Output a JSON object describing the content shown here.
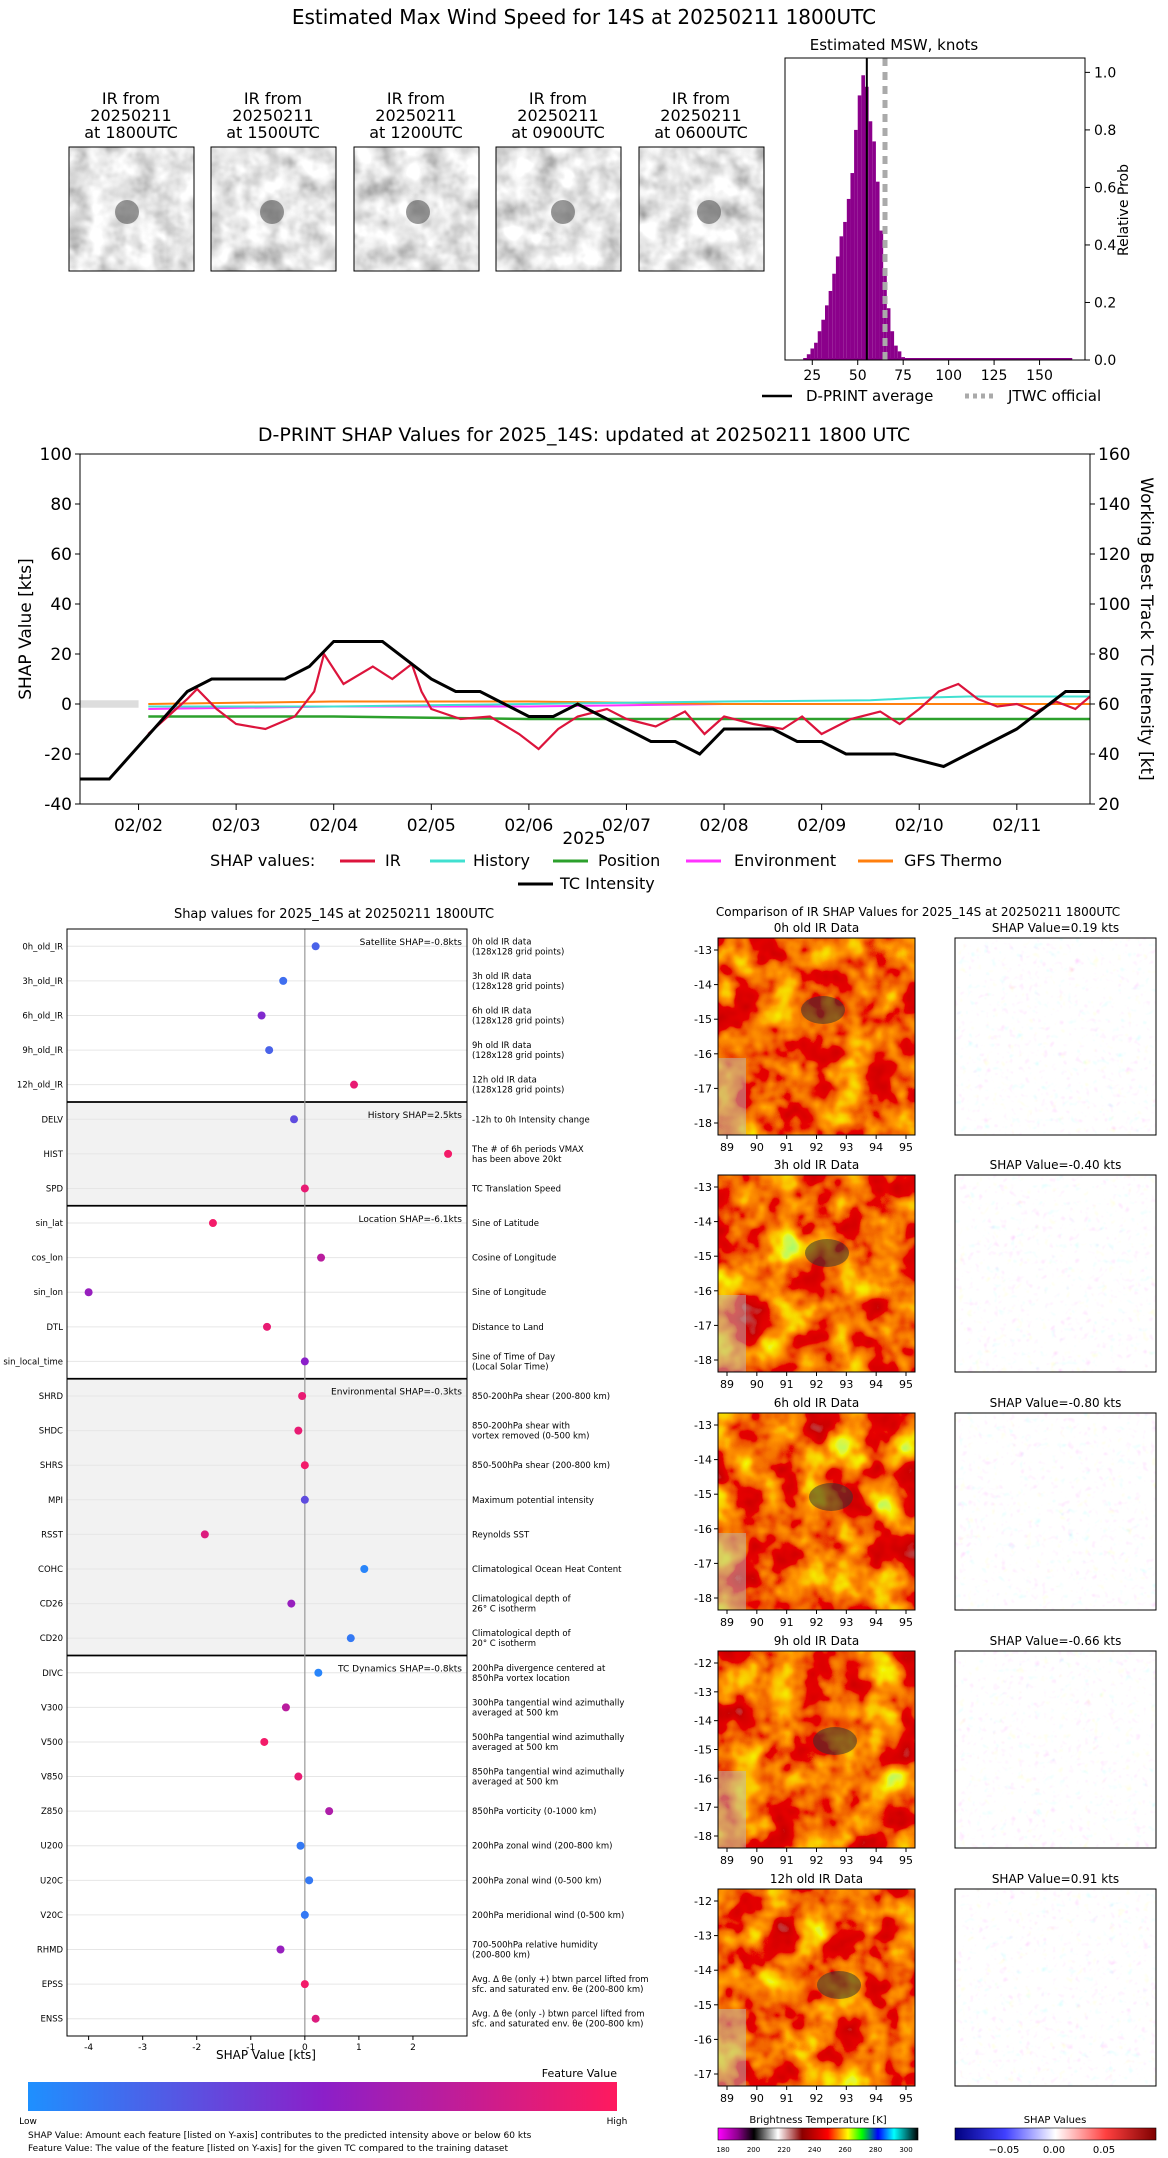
{
  "page_title": "Estimated Max Wind Speed for 14S at 20250211 1800UTC",
  "ir_thumbnails": [
    {
      "line1": "IR from",
      "line2": "20250211",
      "line3": "at 1800UTC"
    },
    {
      "line1": "IR from",
      "line2": "20250211",
      "line3": "at 1500UTC"
    },
    {
      "line1": "IR from",
      "line2": "20250211",
      "line3": "at 1200UTC"
    },
    {
      "line1": "IR from",
      "line2": "20250211",
      "line3": "at 0900UTC"
    },
    {
      "line1": "IR from",
      "line2": "20250211",
      "line3": "at 0600UTC"
    }
  ],
  "legend_top": {
    "dprint": "D-PRINT average",
    "jtwc": "JTWC official"
  },
  "legend_shap": {
    "prefix": "SHAP values:",
    "ir": "IR",
    "history": "History",
    "position": "Position",
    "environment": "Environment",
    "gfs": "GFS Thermo",
    "tc": "TC Intensity"
  },
  "feature_value": {
    "title": "Feature Value",
    "low": "Low",
    "high": "High"
  },
  "footnotes": {
    "shap_value": "SHAP Value: Amount each feature [listed on Y-axis] contributes to the predicted intensity above or below 60 kts",
    "feature_value": "Feature Value: The value of the feature [listed on Y-axis] for the given TC compared to the training dataset"
  },
  "colorbars": {
    "bt_title": "Brightness Temperature [K]",
    "bt_ticks": [
      "180",
      "200",
      "220",
      "240",
      "260",
      "280",
      "300"
    ],
    "shap_title": "SHAP Values",
    "shap_ticks": [
      "−0.05",
      "0.00",
      "0.05"
    ]
  },
  "colors": {
    "ir": "#dc143c",
    "history": "#40e0d0",
    "position": "#2ca02c",
    "environment": "#ff33ff",
    "gfs": "#ff7f0e",
    "tc": "#000000",
    "histogram": "#8b008b",
    "low": "#1e90ff",
    "high": "#ff1a5e"
  },
  "chart_data": [
    {
      "type": "bar",
      "title": "Estimated MSW, knots",
      "ylabel": "Relative Prob",
      "xlim": [
        10,
        175
      ],
      "ylim": [
        0,
        1.05
      ],
      "x_ticks": [
        25,
        50,
        75,
        100,
        125,
        150
      ],
      "y_ticks": [
        "0.0",
        "0.2",
        "0.4",
        "0.6",
        "0.8",
        "1.0"
      ],
      "bin_width": 2,
      "bins": [
        [
          22,
          0.02
        ],
        [
          24,
          0.04
        ],
        [
          26,
          0.06
        ],
        [
          28,
          0.1
        ],
        [
          30,
          0.14
        ],
        [
          32,
          0.19
        ],
        [
          34,
          0.24
        ],
        [
          36,
          0.3
        ],
        [
          38,
          0.36
        ],
        [
          40,
          0.43
        ],
        [
          42,
          0.48
        ],
        [
          44,
          0.56
        ],
        [
          46,
          0.65
        ],
        [
          48,
          0.8
        ],
        [
          50,
          0.92
        ],
        [
          52,
          0.99
        ],
        [
          54,
          0.95
        ],
        [
          56,
          0.83
        ],
        [
          58,
          0.76
        ],
        [
          60,
          0.62
        ],
        [
          62,
          0.45
        ],
        [
          64,
          0.3
        ],
        [
          66,
          0.18
        ],
        [
          68,
          0.1
        ],
        [
          70,
          0.05
        ],
        [
          72,
          0.03
        ],
        [
          74,
          0.01
        ]
      ],
      "baseline_range": [
        20,
        168
      ],
      "dprint_average": 55,
      "jtwc_official": 65
    },
    {
      "type": "line",
      "title": "D-PRINT SHAP Values for 2025_14S: updated at 20250211 1800 UTC",
      "ylabel": "SHAP Value [kts]",
      "y2label": "Working Best Track TC Intensity [kt]",
      "xlabel": "2025",
      "x_ticks": [
        "02/02",
        "02/03",
        "02/04",
        "02/05",
        "02/06",
        "02/07",
        "02/08",
        "02/09",
        "02/10",
        "02/11"
      ],
      "xlim": [
        1.4,
        11.75
      ],
      "ylim": [
        -40,
        100
      ],
      "y_ticks": [
        "-40",
        "-20",
        "0",
        "20",
        "40",
        "60",
        "80",
        "100"
      ],
      "y2lim": [
        20,
        160
      ],
      "y2_ticks": [
        "20",
        "40",
        "60",
        "80",
        "100",
        "120",
        "140",
        "160"
      ],
      "tc_intensity": [
        [
          1.4,
          30
        ],
        [
          1.7,
          30
        ],
        [
          2.5,
          65
        ],
        [
          2.75,
          70
        ],
        [
          3.5,
          70
        ],
        [
          3.75,
          75
        ],
        [
          4.0,
          85
        ],
        [
          4.5,
          85
        ],
        [
          5.0,
          70
        ],
        [
          5.25,
          65
        ],
        [
          5.5,
          65
        ],
        [
          6.0,
          55
        ],
        [
          6.25,
          55
        ],
        [
          6.5,
          60
        ],
        [
          7.0,
          50
        ],
        [
          7.25,
          45
        ],
        [
          7.5,
          45
        ],
        [
          7.75,
          40
        ],
        [
          8.0,
          50
        ],
        [
          8.5,
          50
        ],
        [
          8.75,
          45
        ],
        [
          9.0,
          45
        ],
        [
          9.25,
          40
        ],
        [
          9.75,
          40
        ],
        [
          10.25,
          35
        ],
        [
          10.5,
          40
        ],
        [
          11.0,
          50
        ],
        [
          11.5,
          65
        ],
        [
          11.75,
          65
        ]
      ],
      "ir_shap": [
        [
          2.1,
          -12
        ],
        [
          2.3,
          -5
        ],
        [
          2.5,
          2
        ],
        [
          2.6,
          6
        ],
        [
          2.8,
          -2
        ],
        [
          3.0,
          -8
        ],
        [
          3.3,
          -10
        ],
        [
          3.6,
          -5
        ],
        [
          3.8,
          5
        ],
        [
          3.9,
          20
        ],
        [
          4.1,
          8
        ],
        [
          4.4,
          15
        ],
        [
          4.6,
          10
        ],
        [
          4.8,
          16
        ],
        [
          4.9,
          5
        ],
        [
          5.0,
          -2
        ],
        [
          5.3,
          -6
        ],
        [
          5.6,
          -5
        ],
        [
          5.9,
          -12
        ],
        [
          6.1,
          -18
        ],
        [
          6.3,
          -10
        ],
        [
          6.5,
          -5
        ],
        [
          6.8,
          -2
        ],
        [
          7.0,
          -6
        ],
        [
          7.3,
          -9
        ],
        [
          7.6,
          -3
        ],
        [
          7.8,
          -12
        ],
        [
          8.0,
          -5
        ],
        [
          8.3,
          -8
        ],
        [
          8.6,
          -10
        ],
        [
          8.8,
          -5
        ],
        [
          9.0,
          -12
        ],
        [
          9.3,
          -6
        ],
        [
          9.6,
          -3
        ],
        [
          9.8,
          -8
        ],
        [
          10.0,
          -2
        ],
        [
          10.2,
          5
        ],
        [
          10.4,
          8
        ],
        [
          10.6,
          2
        ],
        [
          10.8,
          -1
        ],
        [
          11.0,
          0
        ],
        [
          11.2,
          -3
        ],
        [
          11.4,
          1
        ],
        [
          11.6,
          -2
        ],
        [
          11.75,
          3
        ]
      ],
      "history_shap": [
        [
          2.1,
          -1
        ],
        [
          4.0,
          -1
        ],
        [
          6.0,
          0
        ],
        [
          8.0,
          1
        ],
        [
          9.5,
          1.5
        ],
        [
          10.0,
          2.5
        ],
        [
          10.5,
          3
        ],
        [
          11.75,
          3
        ]
      ],
      "position_shap": [
        [
          2.1,
          -5
        ],
        [
          4.0,
          -5
        ],
        [
          6.0,
          -6
        ],
        [
          8.0,
          -6
        ],
        [
          10.0,
          -6
        ],
        [
          11.75,
          -6
        ]
      ],
      "environment_shap": [
        [
          2.1,
          -2
        ],
        [
          4.0,
          -1
        ],
        [
          6.0,
          -1
        ],
        [
          8.0,
          0
        ],
        [
          10.0,
          0
        ],
        [
          11.75,
          0
        ]
      ],
      "gfs_shap": [
        [
          2.1,
          0
        ],
        [
          4.0,
          1
        ],
        [
          6.0,
          1
        ],
        [
          8.0,
          0
        ],
        [
          10.0,
          0
        ],
        [
          11.75,
          0
        ]
      ]
    },
    {
      "type": "scatter",
      "title": "Shap values for 2025_14S at 20250211 1800UTC",
      "xlabel": "SHAP Value [kts]",
      "xlim": [
        -4.4,
        3.0
      ],
      "x_ticks": [
        "-4",
        "-3",
        "-2",
        "-1",
        "0",
        "1",
        "2"
      ],
      "groups": [
        {
          "label": "Satellite SHAP=-0.8kts",
          "shaded": false,
          "features": [
            {
              "name": "0h_old_IR",
              "desc": [
                "0h old IR data",
                "(128x128 grid points)"
              ],
              "shap": 0.2,
              "fv": 0.2
            },
            {
              "name": "3h_old_IR",
              "desc": [
                "3h old IR data",
                "(128x128 grid points)"
              ],
              "shap": -0.4,
              "fv": 0.15
            },
            {
              "name": "6h_old_IR",
              "desc": [
                "6h old IR data",
                "(128x128 grid points)"
              ],
              "shap": -0.8,
              "fv": 0.45
            },
            {
              "name": "9h_old_IR",
              "desc": [
                "9h old IR data",
                "(128x128 grid points)"
              ],
              "shap": -0.66,
              "fv": 0.2
            },
            {
              "name": "12h_old_IR",
              "desc": [
                "12h old IR data",
                "(128x128 grid points)"
              ],
              "shap": 0.91,
              "fv": 0.9
            }
          ]
        },
        {
          "label": "History SHAP=2.5kts",
          "shaded": true,
          "features": [
            {
              "name": "DELV",
              "desc": [
                "-12h to 0h Intensity change"
              ],
              "shap": -0.2,
              "fv": 0.3
            },
            {
              "name": "HIST",
              "desc": [
                "The # of 6h periods VMAX",
                "has been above 20kt"
              ],
              "shap": 2.65,
              "fv": 0.95
            },
            {
              "name": "SPD",
              "desc": [
                "TC Translation Speed"
              ],
              "shap": 0.0,
              "fv": 0.9
            }
          ]
        },
        {
          "label": "Location SHAP=-6.1kts",
          "shaded": false,
          "features": [
            {
              "name": "sin_lat",
              "desc": [
                "Sine of Latitude"
              ],
              "shap": -1.7,
              "fv": 0.95
            },
            {
              "name": "cos_lon",
              "desc": [
                "Cosine of Longitude"
              ],
              "shap": 0.3,
              "fv": 0.7
            },
            {
              "name": "sin_lon",
              "desc": [
                "Sine of Longitude"
              ],
              "shap": -4.0,
              "fv": 0.55
            },
            {
              "name": "DTL",
              "desc": [
                "Distance to Land"
              ],
              "shap": -0.7,
              "fv": 0.9
            },
            {
              "name": "sin_local_time",
              "desc": [
                "Sine of Time of Day",
                "(Local Solar Time)"
              ],
              "shap": 0.0,
              "fv": 0.5
            }
          ]
        },
        {
          "label": "Environmental SHAP=-0.3kts",
          "shaded": true,
          "features": [
            {
              "name": "SHRD",
              "desc": [
                "850-200hPa shear (200-800 km)"
              ],
              "shap": -0.05,
              "fv": 0.9
            },
            {
              "name": "SHDC",
              "desc": [
                "850-200hPa shear with",
                "vortex removed (0-500 km)"
              ],
              "shap": -0.12,
              "fv": 0.9
            },
            {
              "name": "SHRS",
              "desc": [
                "850-500hPa shear (200-800 km)"
              ],
              "shap": 0.0,
              "fv": 0.95
            },
            {
              "name": "MPI",
              "desc": [
                "Maximum potential intensity"
              ],
              "shap": 0.0,
              "fv": 0.3
            },
            {
              "name": "RSST",
              "desc": [
                "Reynolds SST"
              ],
              "shap": -1.85,
              "fv": 0.85
            },
            {
              "name": "COHC",
              "desc": [
                "Climatological Ocean Heat Content"
              ],
              "shap": 1.1,
              "fv": 0.05
            },
            {
              "name": "CD26",
              "desc": [
                "Climatological depth of",
                "26° C isotherm"
              ],
              "shap": -0.25,
              "fv": 0.55
            },
            {
              "name": "CD20",
              "desc": [
                "Climatological depth of",
                "20° C isotherm"
              ],
              "shap": 0.85,
              "fv": 0.1
            }
          ]
        },
        {
          "label": "TC Dynamics SHAP=-0.8kts",
          "shaded": false,
          "features": [
            {
              "name": "DIVC",
              "desc": [
                "200hPa divergence centered at",
                "850hPa vortex location"
              ],
              "shap": 0.25,
              "fv": 0.05
            },
            {
              "name": "V300",
              "desc": [
                "300hPa tangential wind azimuthally",
                "averaged at 500 km"
              ],
              "shap": -0.35,
              "fv": 0.7
            },
            {
              "name": "V500",
              "desc": [
                "500hPa tangential wind azimuthally",
                "averaged at 500 km"
              ],
              "shap": -0.75,
              "fv": 0.95
            },
            {
              "name": "V850",
              "desc": [
                "850hPa tangential wind azimuthally",
                "averaged at 500 km"
              ],
              "shap": -0.12,
              "fv": 0.9
            },
            {
              "name": "Z850",
              "desc": [
                "850hPa vorticity (0-1000 km)"
              ],
              "shap": 0.45,
              "fv": 0.65
            },
            {
              "name": "U200",
              "desc": [
                "200hPa zonal wind (200-800 km)"
              ],
              "shap": -0.08,
              "fv": 0.1
            },
            {
              "name": "U20C",
              "desc": [
                "200hPa zonal wind (0-500 km)"
              ],
              "shap": 0.08,
              "fv": 0.1
            },
            {
              "name": "V20C",
              "desc": [
                "200hPa meridional wind (0-500 km)"
              ],
              "shap": 0.0,
              "fv": 0.1
            },
            {
              "name": "RHMD",
              "desc": [
                "700-500hPa relative humidity",
                "(200-800 km)"
              ],
              "shap": -0.45,
              "fv": 0.55
            },
            {
              "name": "EPSS",
              "desc": [
                "Avg. Δ θe (only +) btwn parcel lifted from",
                "sfc. and saturated env. θe (200-800 km)"
              ],
              "shap": 0.0,
              "fv": 0.95
            },
            {
              "name": "ENSS",
              "desc": [
                "Avg. Δ θe (only -) btwn parcel lifted from",
                "sfc. and saturated env. θe (200-800 km)"
              ],
              "shap": 0.2,
              "fv": 0.85
            }
          ]
        }
      ]
    },
    {
      "type": "heatmap",
      "title": "Comparison of IR SHAP Values for 2025_14S at 20250211 1800UTC",
      "x_ticks": [
        "89",
        "90",
        "91",
        "92",
        "93",
        "94",
        "95"
      ],
      "panels": [
        {
          "ir_title": "0h old IR Data",
          "shap_title": "SHAP Value=0.19 kts",
          "y_ticks": [
            "-13",
            "-14",
            "-15",
            "-16",
            "-17",
            "-18"
          ]
        },
        {
          "ir_title": "3h old IR Data",
          "shap_title": "SHAP Value=-0.40 kts",
          "y_ticks": [
            "-13",
            "-14",
            "-15",
            "-16",
            "-17",
            "-18"
          ]
        },
        {
          "ir_title": "6h old IR Data",
          "shap_title": "SHAP Value=-0.80 kts",
          "y_ticks": [
            "-13",
            "-14",
            "-15",
            "-16",
            "-17",
            "-18"
          ]
        },
        {
          "ir_title": "9h old IR Data",
          "shap_title": "SHAP Value=-0.66 kts",
          "y_ticks": [
            "-12",
            "-13",
            "-14",
            "-15",
            "-16",
            "-17",
            "-18"
          ]
        },
        {
          "ir_title": "12h old IR Data",
          "shap_title": "SHAP Value=0.91 kts",
          "y_ticks": [
            "-12",
            "-13",
            "-14",
            "-15",
            "-16",
            "-17"
          ]
        }
      ]
    }
  ]
}
